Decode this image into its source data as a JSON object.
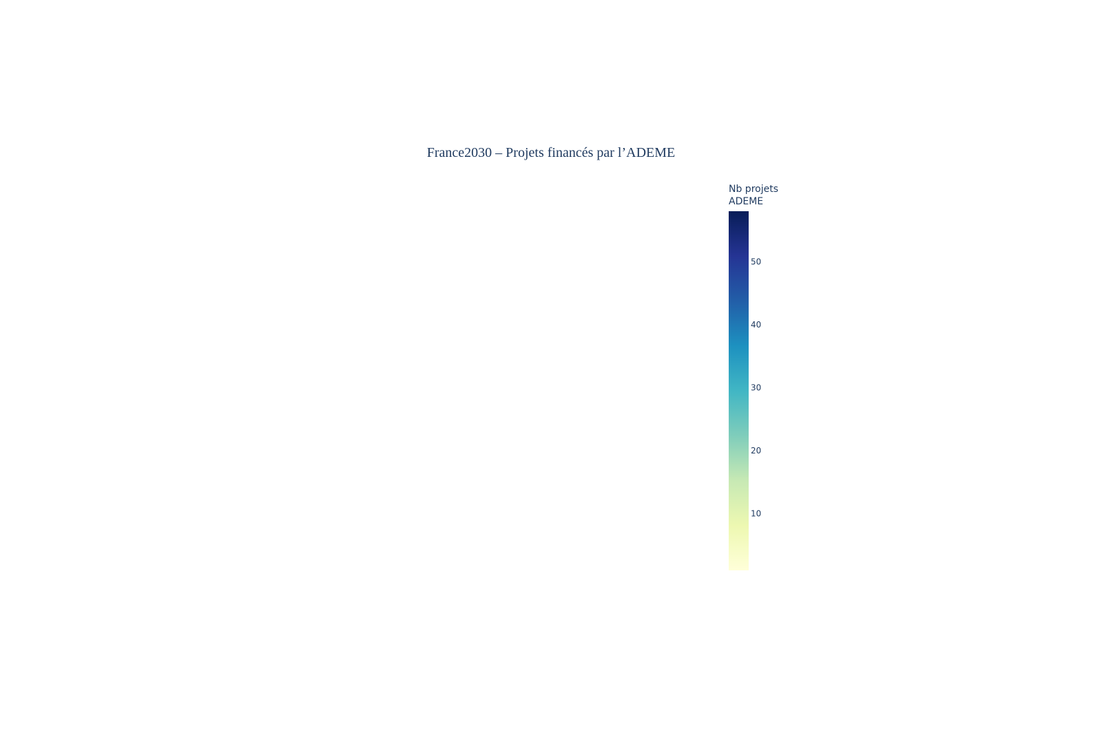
{
  "chart_data": {
    "type": "choropleth",
    "title": "France2030 – Projets financés par l’ADEME",
    "colorbar": {
      "title_lines": [
        "Nb projets",
        "ADEME"
      ],
      "range": [
        1,
        58
      ],
      "ticks": [
        10,
        20,
        30,
        40,
        50
      ],
      "colorscale": "YlGnBu",
      "colors": [
        [
          0.0,
          "#ffffd9"
        ],
        [
          0.125,
          "#edf8b1"
        ],
        [
          0.25,
          "#c7e9b4"
        ],
        [
          0.375,
          "#7fcdbb"
        ],
        [
          0.5,
          "#41b6c4"
        ],
        [
          0.625,
          "#1d91c0"
        ],
        [
          0.75,
          "#225ea8"
        ],
        [
          0.875,
          "#253494"
        ],
        [
          1.0,
          "#081d58"
        ]
      ]
    },
    "regions": []
  }
}
